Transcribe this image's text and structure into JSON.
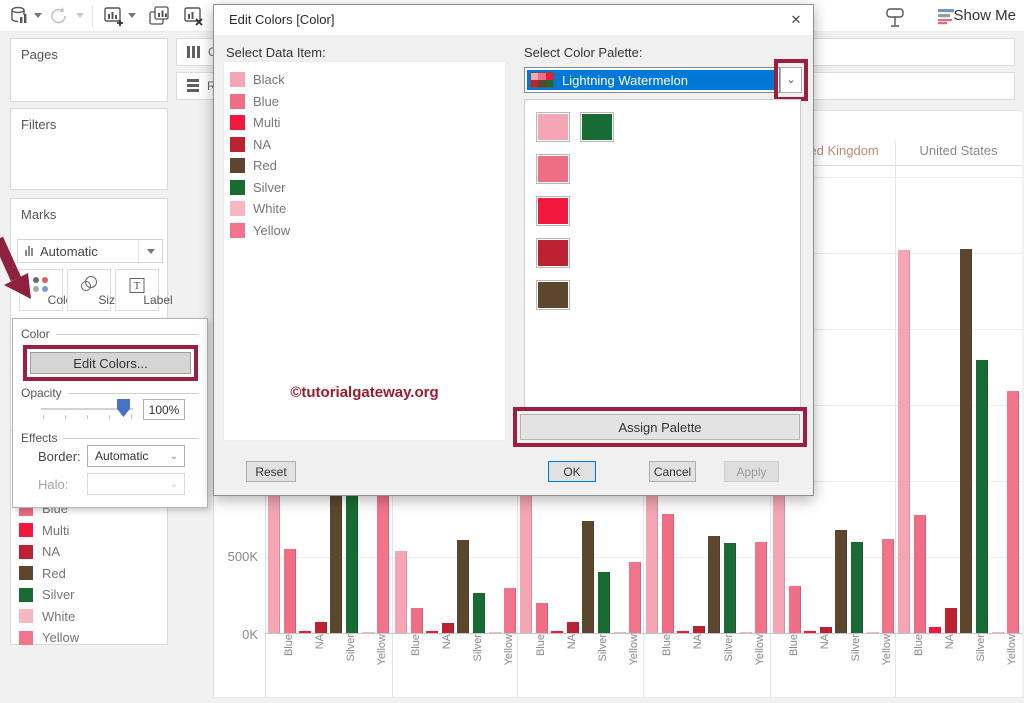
{
  "colors": {
    "annotation": "#9b1f40",
    "accent": "#0078d7",
    "arrow": "#8e2040",
    "watermark": "#9c1b31"
  },
  "toolbar": {
    "icons": [
      "data-source",
      "refresh",
      "new-worksheet",
      "duplicate-sheet",
      "clear-sheet",
      "presentation-mode",
      "show-me"
    ],
    "show_me_label": "Show Me"
  },
  "shelves": {
    "columns_label": "Columns",
    "rows_label": "Rows"
  },
  "cards": {
    "pages_label": "Pages",
    "filters_label": "Filters",
    "marks_label": "Marks",
    "mark_type": "Automatic",
    "marks_buttons": [
      {
        "label": "Color"
      },
      {
        "label": "Size"
      },
      {
        "label": "Label"
      }
    ]
  },
  "color_popup": {
    "section_color": "Color",
    "edit_colors_label": "Edit Colors...",
    "section_opacity": "Opacity",
    "opacity_value": "100%",
    "section_effects": "Effects",
    "border_label": "Border:",
    "border_value": "Automatic",
    "halo_label": "Halo:",
    "halo_value": ""
  },
  "legend": {
    "items": [
      {
        "label": "Blue",
        "color": "#ef6e83"
      },
      {
        "label": "Multi",
        "color": "#f3193e"
      },
      {
        "label": "NA",
        "color": "#bc2231"
      },
      {
        "label": "Red",
        "color": "#5c462e"
      },
      {
        "label": "Silver",
        "color": "#186c33"
      },
      {
        "label": "White",
        "color": "#f7b6c2"
      },
      {
        "label": "Yellow",
        "color": "#f1748b"
      }
    ]
  },
  "dialog": {
    "title": "Edit Colors [Color]",
    "close_glyph": "✕",
    "select_data_item_label": "Select Data Item:",
    "data_items": [
      {
        "label": "Black",
        "color": "#f4a6b4"
      },
      {
        "label": "Blue",
        "color": "#ef6e83"
      },
      {
        "label": "Multi",
        "color": "#f3193e"
      },
      {
        "label": "NA",
        "color": "#bc2231"
      },
      {
        "label": "Red",
        "color": "#5c462e"
      },
      {
        "label": "Silver",
        "color": "#186c33"
      },
      {
        "label": "White",
        "color": "#f7b6c2"
      },
      {
        "label": "Yellow",
        "color": "#f1748b"
      }
    ],
    "select_palette_label": "Select Color Palette:",
    "palette_name": "Lightning Watermelon",
    "palette_preview_rows": [
      [
        "#f4a6b4",
        "#ef6e83",
        "#f3193e"
      ],
      [
        "#bc2231",
        "#5c462e",
        "#186c33"
      ]
    ],
    "palette_swatches": [
      {
        "color": "#f4a6b4",
        "row": 0,
        "col": 0
      },
      {
        "color": "#186c33",
        "row": 0,
        "col": 1
      },
      {
        "color": "#ef6e83",
        "row": 1,
        "col": 0
      },
      {
        "color": "#f3193e",
        "row": 2,
        "col": 0
      },
      {
        "color": "#bc2231",
        "row": 3,
        "col": 0
      },
      {
        "color": "#5c462e",
        "row": 4,
        "col": 0
      }
    ],
    "watermark": "©tutorialgateway.org",
    "assign_palette_label": "Assign Palette",
    "reset_label": "Reset",
    "ok_label": "OK",
    "cancel_label": "Cancel",
    "apply_label": "Apply"
  },
  "chart_data": {
    "type": "bar",
    "categories": [
      "Black",
      "Blue",
      "Multi",
      "NA",
      "Red",
      "Silver",
      "White",
      "Yellow"
    ],
    "category_colors": [
      "#f4a6b4",
      "#ef6e83",
      "#f3193e",
      "#bc2231",
      "#5c462e",
      "#186c33",
      "#f7b6c2",
      "#f1748b"
    ],
    "panels": [
      {
        "header": "",
        "values": [
          1800,
          550,
          15,
          75,
          1000,
          980,
          5,
          1150
        ]
      },
      {
        "header": "",
        "values": [
          540,
          165,
          15,
          65,
          610,
          265,
          5,
          295
        ]
      },
      {
        "header": "",
        "values": [
          1500,
          195,
          15,
          75,
          740,
          400,
          5,
          465
        ]
      },
      {
        "header": "",
        "values": [
          1700,
          780,
          15,
          45,
          640,
          590,
          5,
          600
        ]
      },
      {
        "header": "United Kingdom",
        "header_color": "#bd8a7d",
        "values": [
          1200,
          310,
          15,
          40,
          680,
          600,
          5,
          620
        ]
      },
      {
        "header": "United States",
        "header_color": "#8a8a8a",
        "values": [
          2520,
          775,
          40,
          165,
          2525,
          1795,
          5,
          1590
        ]
      }
    ],
    "y_ticks": [
      {
        "label": "0K",
        "value": 0
      },
      {
        "label": "500K",
        "value": 500
      }
    ],
    "ylim": [
      0,
      3300
    ],
    "y_unit": "K (thousands)",
    "label_indices": [
      1,
      3,
      5,
      7
    ],
    "gridlines": true,
    "legend_position": "left"
  }
}
